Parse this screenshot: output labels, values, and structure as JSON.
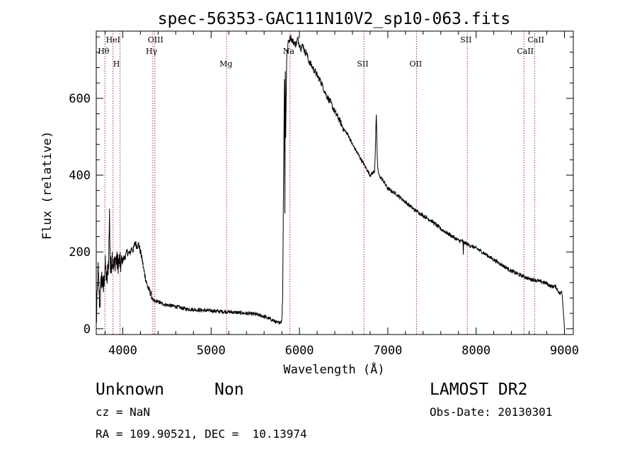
{
  "chart_data": {
    "type": "line",
    "title": "spec-56353-GAC111N10V2_sp10-063.fits",
    "xlabel": "Wavelength (Å)",
    "ylabel": "Flux (relative)",
    "xlim": [
      3700,
      9100
    ],
    "ylim": [
      -15,
      775
    ],
    "xticks": [
      4000,
      5000,
      6000,
      7000,
      8000,
      9000
    ],
    "xtick_labels": [
      "4000",
      "5000",
      "6000",
      "7000",
      "8000",
      "9000"
    ],
    "yticks": [
      0,
      200,
      400,
      600
    ],
    "ytick_labels": [
      "0",
      "200",
      "400",
      "600"
    ],
    "grid": false,
    "line_color": "#000000",
    "marker_color": "#b03030",
    "series": [
      {
        "x": [
          3700,
          3720,
          3740,
          3760,
          3780,
          3800,
          3820,
          3840,
          3850,
          3860,
          3880,
          3900,
          3920,
          3940,
          3960,
          3980,
          4000,
          4020,
          4050,
          4080,
          4100,
          4120,
          4140,
          4160,
          4180,
          4200,
          4220,
          4240,
          4260,
          4280,
          4300,
          4320,
          4340,
          4360,
          4380,
          4400,
          4450,
          4500,
          4550,
          4600,
          4650,
          4700,
          4800,
          4900,
          5000,
          5100,
          5200,
          5300,
          5400,
          5500,
          5600,
          5700,
          5750,
          5800,
          5810,
          5820,
          5830,
          5835,
          5840,
          5845,
          5850,
          5855,
          5860,
          5865,
          5870,
          5880,
          5900,
          5920,
          5940,
          5960,
          5980,
          6000,
          6020,
          6040,
          6060,
          6080,
          6100,
          6150,
          6200,
          6250,
          6300,
          6350,
          6400,
          6450,
          6500,
          6550,
          6600,
          6650,
          6700,
          6750,
          6800,
          6850,
          6860,
          6870,
          6880,
          6890,
          6900,
          6950,
          7000,
          7100,
          7200,
          7300,
          7400,
          7500,
          7600,
          7700,
          7800,
          7850,
          7855,
          7860,
          7900,
          8000,
          8100,
          8200,
          8300,
          8400,
          8500,
          8600,
          8700,
          8800,
          8850,
          8900,
          8950,
          8970,
          8990,
          9000
        ],
        "y": [
          10,
          150,
          60,
          140,
          100,
          170,
          120,
          180,
          300,
          150,
          190,
          160,
          185,
          170,
          175,
          165,
          180,
          185,
          200,
          195,
          210,
          205,
          225,
          215,
          220,
          200,
          180,
          150,
          130,
          110,
          100,
          90,
          75,
          70,
          72,
          70,
          65,
          62,
          60,
          58,
          55,
          52,
          50,
          48,
          47,
          45,
          44,
          42,
          40,
          38,
          32,
          22,
          15,
          20,
          80,
          380,
          650,
          300,
          670,
          500,
          600,
          700,
          730,
          715,
          740,
          750,
          760,
          750,
          745,
          740,
          755,
          740,
          730,
          740,
          720,
          720,
          700,
          680,
          660,
          640,
          610,
          590,
          565,
          545,
          520,
          505,
          480,
          460,
          440,
          420,
          400,
          410,
          470,
          560,
          450,
          410,
          400,
          385,
          365,
          350,
          330,
          310,
          295,
          280,
          260,
          245,
          230,
          228,
          195,
          225,
          220,
          210,
          195,
          180,
          165,
          150,
          140,
          130,
          125,
          118,
          110,
          110,
          90,
          100,
          40,
          0
        ]
      }
    ],
    "line_markers": [
      {
        "label": "Hθ",
        "x": 3798,
        "row": 1
      },
      {
        "label": "HeI",
        "x": 3889,
        "row": 0
      },
      {
        "label": "H",
        "x": 3970,
        "row": 2
      },
      {
        "label": "OIII",
        "x": 4363,
        "row": 0
      },
      {
        "label": "Hγ",
        "x": 4341,
        "row": 1
      },
      {
        "label": "Mg",
        "x": 5175,
        "row": 2
      },
      {
        "label": "Na",
        "x": 5893,
        "row": 1
      },
      {
        "label": "SII",
        "x": 6731,
        "row": 2
      },
      {
        "label": "OII",
        "x": 7325,
        "row": 2
      },
      {
        "label": "SII",
        "x": 7900,
        "row": 0
      },
      {
        "label": "CaII",
        "x": 8542,
        "row": 1
      },
      {
        "label": "CaII",
        "x": 8662,
        "row": 0
      }
    ]
  },
  "info": {
    "class_label": "Unknown",
    "subclass_label": "Non",
    "survey": "LAMOST DR2",
    "cz": "cz = NaN",
    "obs_date": "Obs-Date: 20130301",
    "coords": "RA = 109.90521, DEC =  10.13974"
  }
}
